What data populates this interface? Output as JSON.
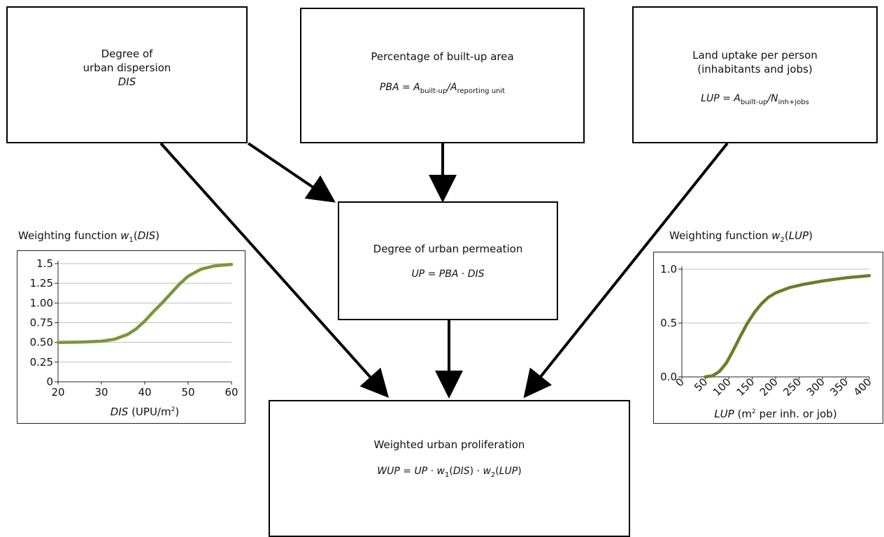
{
  "boxes": {
    "dis": {
      "line1": "Degree of",
      "line2": "urban dispersion",
      "symbol": "DIS"
    },
    "pba": {
      "title": "Percentage of built-up area",
      "lhs": "PBA",
      "eq": "=",
      "a1": "A",
      "a1_sub": "built-up",
      "slash": "/",
      "a2": "A",
      "a2_sub": "reporting unit"
    },
    "lup": {
      "line1": "Land uptake per person",
      "line2": "(inhabitants and jobs)",
      "lhs": "LUP",
      "eq": "=",
      "a1": "A",
      "a1_sub": "built-up",
      "slash": "/",
      "n": "N",
      "n_sub": "inh+jobs"
    },
    "up": {
      "title": "Degree of urban permeation",
      "lhs": "UP",
      "eq": "=",
      "t1": "PBA",
      "dot": "·",
      "t2": "DIS"
    },
    "wup": {
      "title": "Weighted urban proliferation",
      "lhs": "WUP",
      "eq": "=",
      "t1": "UP",
      "dot1": "·",
      "w1": "w",
      "w1_sub": "1",
      "w1_open": "(",
      "w1_arg": "DIS",
      "w1_close": ")",
      "dot2": "·",
      "w2": "w",
      "w2_sub": "2",
      "w2_open": "(",
      "w2_arg": "LUP",
      "w2_close": ")"
    }
  },
  "weighting": {
    "w1": {
      "prefix": "Weighting function ",
      "w": "w",
      "sub": "1",
      "open": "(",
      "arg": "DIS",
      "close": ")"
    },
    "w2": {
      "prefix": "Weighting function ",
      "w": "w",
      "sub": "2",
      "open": "(",
      "arg": "LUP",
      "close": ")"
    }
  },
  "chart_data": [
    {
      "type": "line",
      "xlabel_var": "DIS",
      "xlabel_unit": " (UPU/m",
      "xlabel_sup": "2",
      "xlabel_close": ")",
      "x_ticks": [
        "20",
        "30",
        "40",
        "50",
        "60"
      ],
      "y_ticks": [
        "0",
        "0.25",
        "0.50",
        "0.75",
        "1.00",
        "1.25",
        "1.5"
      ],
      "xlim": [
        20,
        60
      ],
      "ylim": [
        0,
        1.5
      ],
      "grid": true,
      "color": "#7a963a",
      "series": [
        {
          "x": [
            20,
            25,
            30,
            33,
            36,
            38,
            40,
            42,
            44,
            46,
            48,
            50,
            53,
            56,
            60
          ],
          "y": [
            0.5,
            0.503,
            0.515,
            0.54,
            0.6,
            0.67,
            0.77,
            0.89,
            1.0,
            1.12,
            1.24,
            1.34,
            1.43,
            1.47,
            1.49
          ]
        }
      ]
    },
    {
      "type": "line",
      "xlabel_var": "LUP",
      "xlabel_unit_pre": " (m",
      "xlabel_sup": "2",
      "xlabel_unit_post": " per inh. or job)",
      "x_ticks": [
        "0",
        "50",
        "100",
        "150",
        "200",
        "250",
        "300",
        "350",
        "400"
      ],
      "y_ticks": [
        "0.0",
        "0.5",
        "1.0"
      ],
      "xlim": [
        0,
        400
      ],
      "ylim": [
        0,
        1.0
      ],
      "grid": true,
      "color": "#6b7d2a",
      "series": [
        {
          "x": [
            50,
            65,
            80,
            95,
            110,
            125,
            140,
            155,
            170,
            185,
            200,
            230,
            260,
            300,
            350,
            400
          ],
          "y": [
            0.0,
            0.01,
            0.05,
            0.13,
            0.25,
            0.38,
            0.5,
            0.6,
            0.68,
            0.74,
            0.78,
            0.83,
            0.86,
            0.89,
            0.92,
            0.94
          ]
        }
      ]
    }
  ]
}
